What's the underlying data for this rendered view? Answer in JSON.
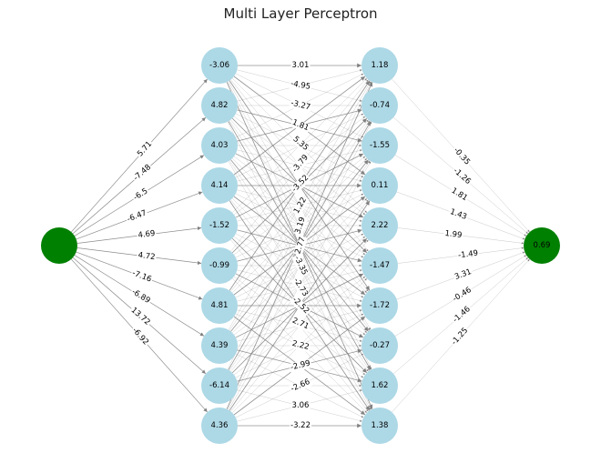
{
  "title": "Multi Layer Perceptron",
  "colors": {
    "io_node": "#008000",
    "hidden_node": "#add8e6",
    "edge": "#808080",
    "label_bg": "#ffffff"
  },
  "network": {
    "input_layer": {
      "nodes": [
        ""
      ]
    },
    "hidden_layer_1": {
      "nodes": [
        "-3.06",
        "4.82",
        "4.03",
        "4.14",
        "-1.52",
        "-0.99",
        "4.81",
        "4.39",
        "-6.14",
        "4.36"
      ]
    },
    "hidden_layer_2": {
      "nodes": [
        "1.18",
        "-0.74",
        "-1.55",
        "0.11",
        "2.22",
        "-1.47",
        "-1.72",
        "-0.27",
        "1.62",
        "1.38"
      ]
    },
    "output_layer": {
      "nodes": [
        "0.69"
      ]
    },
    "input_to_hidden1_weights": [
      "5.71",
      "-7.48",
      "-6.5",
      "-6.47",
      "4.69",
      "4.72",
      "-7.16",
      "-6.89",
      "13.72",
      "-6.92"
    ],
    "hidden1_to_hidden2_weights": [
      "3.01",
      "-4.95",
      "-3.27",
      "1.81",
      "5.35",
      "-3.79",
      "-3.52",
      "1.22",
      "3.19",
      "2.77",
      "-3.35",
      "-2.73",
      "-2.52",
      "2.71",
      "2.22",
      "-2.99",
      "-2.66",
      "3.06",
      "-3.22"
    ],
    "hidden2_to_output_weights": [
      "-0.35",
      "-1.26",
      "1.81",
      "1.43",
      "1.99",
      "-1.49",
      "3.31",
      "-0.46",
      "-1.46",
      "-1.25"
    ]
  }
}
